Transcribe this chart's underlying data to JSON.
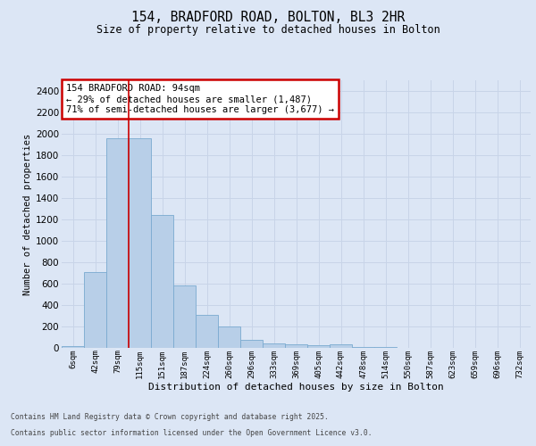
{
  "title_line1": "154, BRADFORD ROAD, BOLTON, BL3 2HR",
  "title_line2": "Size of property relative to detached houses in Bolton",
  "xlabel": "Distribution of detached houses by size in Bolton",
  "ylabel": "Number of detached properties",
  "categories": [
    "6sqm",
    "42sqm",
    "79sqm",
    "115sqm",
    "151sqm",
    "187sqm",
    "224sqm",
    "260sqm",
    "296sqm",
    "333sqm",
    "369sqm",
    "405sqm",
    "442sqm",
    "478sqm",
    "514sqm",
    "550sqm",
    "587sqm",
    "623sqm",
    "659sqm",
    "696sqm",
    "732sqm"
  ],
  "values": [
    15,
    710,
    1960,
    1960,
    1240,
    580,
    305,
    200,
    75,
    40,
    30,
    25,
    35,
    10,
    5,
    2,
    1,
    1,
    1,
    1,
    1
  ],
  "bar_color": "#b8cfe8",
  "bar_edge_color": "#7aaad0",
  "grid_color": "#c8d4e8",
  "background_color": "#dce6f5",
  "red_line_x": 2.5,
  "annotation_text": "154 BRADFORD ROAD: 94sqm\n← 29% of detached houses are smaller (1,487)\n71% of semi-detached houses are larger (3,677) →",
  "annotation_box_facecolor": "#ffffff",
  "annotation_box_edgecolor": "#cc0000",
  "ylim": [
    0,
    2500
  ],
  "yticks": [
    0,
    200,
    400,
    600,
    800,
    1000,
    1200,
    1400,
    1600,
    1800,
    2000,
    2200,
    2400
  ],
  "footer_line1": "Contains HM Land Registry data © Crown copyright and database right 2025.",
  "footer_line2": "Contains public sector information licensed under the Open Government Licence v3.0."
}
